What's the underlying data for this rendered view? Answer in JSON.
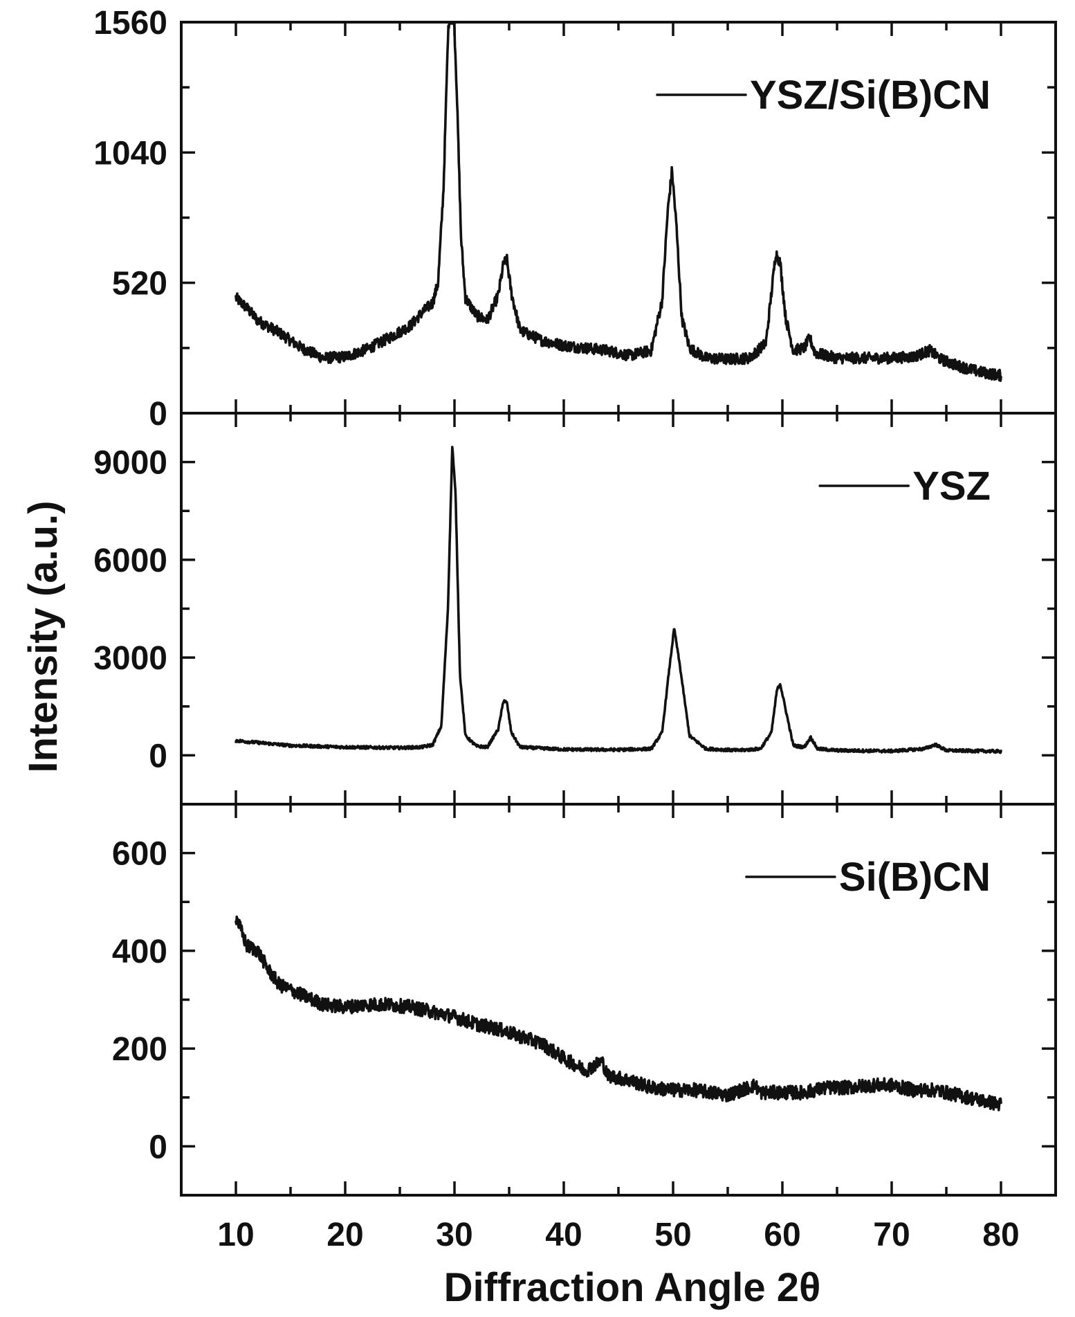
{
  "chart_data": {
    "type": "line",
    "layout": "stacked-panels",
    "xlabel": "Diffraction Angle 2θ",
    "ylabel": "Intensity (a.u.)",
    "xlim": [
      5,
      85
    ],
    "xticks": [
      10,
      20,
      30,
      40,
      50,
      60,
      70,
      80
    ],
    "grid": false,
    "panels": [
      {
        "name": "YSZ/Si(B)CN",
        "legend": "YSZ/Si(B)CN",
        "legend_position": "top-right",
        "ylim": [
          0,
          1560
        ],
        "yticks": [
          0,
          520,
          1040,
          1560
        ],
        "x": [
          10,
          11,
          12,
          14,
          16,
          18,
          20,
          22,
          24,
          26,
          27,
          28,
          28.5,
          29,
          29.4,
          29.8,
          30.2,
          30.6,
          31,
          32,
          33,
          34,
          34.5,
          34.8,
          35.2,
          36,
          38,
          40,
          42,
          44,
          46,
          48,
          49,
          49.5,
          49.9,
          50.3,
          50.8,
          51.5,
          53,
          55,
          57,
          58.5,
          59,
          59.4,
          59.8,
          60.3,
          61,
          62,
          62.5,
          63,
          65,
          70,
          72,
          73.5,
          74.5,
          76,
          78,
          80
        ],
        "y": [
          460,
          420,
          370,
          320,
          260,
          220,
          225,
          255,
          300,
          350,
          400,
          440,
          520,
          900,
          1500,
          1760,
          1300,
          700,
          460,
          390,
          370,
          470,
          600,
          610,
          480,
          330,
          290,
          270,
          260,
          250,
          230,
          250,
          450,
          800,
          970,
          750,
          380,
          260,
          220,
          215,
          220,
          280,
          480,
          640,
          600,
          380,
          250,
          260,
          300,
          240,
          220,
          220,
          225,
          250,
          215,
          190,
          165,
          150
        ]
      },
      {
        "name": "YSZ",
        "legend": "YSZ",
        "legend_position": "top-right",
        "ylim": [
          -1500,
          10500
        ],
        "yticks": [
          0,
          3000,
          6000,
          9000
        ],
        "x": [
          10,
          15,
          20,
          25,
          27,
          28,
          28.8,
          29.4,
          29.8,
          30.1,
          30.5,
          31,
          32,
          33,
          34,
          34.5,
          34.8,
          35.2,
          36,
          40,
          45,
          48,
          49,
          49.6,
          50.1,
          50.6,
          51.5,
          53,
          56,
          58,
          59,
          59.5,
          59.8,
          60.3,
          61,
          62,
          62.6,
          63.2,
          65,
          70,
          73,
          74,
          75,
          80
        ],
        "y": [
          450,
          300,
          250,
          230,
          250,
          320,
          900,
          4500,
          9500,
          8000,
          2500,
          600,
          280,
          250,
          800,
          1700,
          1600,
          700,
          250,
          180,
          170,
          200,
          700,
          2500,
          3900,
          2800,
          600,
          200,
          150,
          200,
          700,
          2000,
          2200,
          1400,
          300,
          250,
          550,
          200,
          150,
          130,
          200,
          330,
          150,
          120
        ]
      },
      {
        "name": "Si(B)CN",
        "legend": "Si(B)CN",
        "legend_position": "top-right",
        "ylim": [
          -100,
          700
        ],
        "yticks": [
          0,
          200,
          400,
          600
        ],
        "x": [
          10,
          11,
          12,
          13,
          14,
          16,
          18,
          20,
          22,
          24,
          26,
          28,
          30,
          32,
          34,
          36,
          38,
          40,
          42,
          43.5,
          44,
          46,
          48,
          50,
          52,
          55,
          57.5,
          58,
          60,
          62,
          64,
          66,
          68,
          70,
          72,
          74,
          76,
          78,
          80
        ],
        "y": [
          470,
          410,
          400,
          360,
          330,
          310,
          290,
          285,
          290,
          290,
          285,
          275,
          265,
          250,
          240,
          225,
          210,
          180,
          155,
          175,
          145,
          135,
          120,
          115,
          115,
          105,
          125,
          110,
          110,
          110,
          120,
          120,
          125,
          125,
          115,
          115,
          105,
          95,
          85
        ]
      }
    ]
  }
}
